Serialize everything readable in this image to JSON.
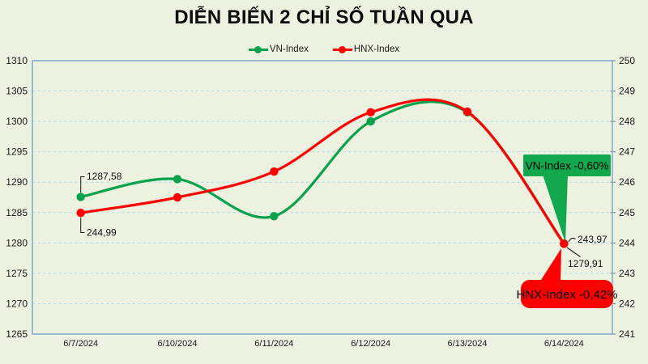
{
  "title": "DIỄN BIẾN 2 CHỈ SỐ TUẦN QUA",
  "legend": [
    {
      "label": "VN-Index",
      "color": "#0aa24d"
    },
    {
      "label": "HNX-Index",
      "color": "#fe0000"
    }
  ],
  "colors": {
    "background": "#edf1e0",
    "plot_border": "#84aecb",
    "gridline": "#b2dde9",
    "vn_index": "#0aa24d",
    "hnx_index": "#fe0000",
    "vn_callout_bg": "#13a84e",
    "hnx_callout_bg": "#fe0000"
  },
  "chart_data": {
    "type": "line",
    "title": "DIỄN BIẾN 2 CHỈ SỐ TUẦN QUA",
    "smooth": true,
    "grid": "horizontal-dashed",
    "legend_position": "top",
    "categories": [
      "6/7/2024",
      "6/10/2024",
      "6/11/2024",
      "6/12/2024",
      "6/13/2024",
      "6/14/2024"
    ],
    "series": [
      {
        "name": "VN-Index",
        "axis": "left",
        "color": "#0aa24d",
        "values": [
          1287.58,
          1290.5,
          1284.4,
          1300.0,
          1301.5,
          1279.91
        ],
        "week_change": "-0,60%"
      },
      {
        "name": "HNX-Index",
        "axis": "right",
        "color": "#fe0000",
        "values": [
          244.99,
          245.5,
          246.35,
          248.3,
          248.32,
          243.97
        ],
        "week_change": "-0,42%"
      }
    ],
    "left_axis": {
      "min": 1265,
      "max": 1310,
      "step": 5,
      "ticks": [
        "1310",
        "1305",
        "1300",
        "1295",
        "1290",
        "1285",
        "1280",
        "1275",
        "1270",
        "1265"
      ]
    },
    "right_axis": {
      "min": 241,
      "max": 250,
      "step": 1,
      "ticks": [
        "250",
        "249",
        "248",
        "247",
        "246",
        "245",
        "244",
        "243",
        "242",
        "241"
      ]
    }
  },
  "annotations": {
    "vn_first": "1287,58",
    "hnx_first": "244,99",
    "hnx_last": "243,97",
    "vn_last": "1279,91",
    "vn_callout": "VN-Index -0,60%",
    "hnx_callout": "HNX-Index -0,42%"
  }
}
